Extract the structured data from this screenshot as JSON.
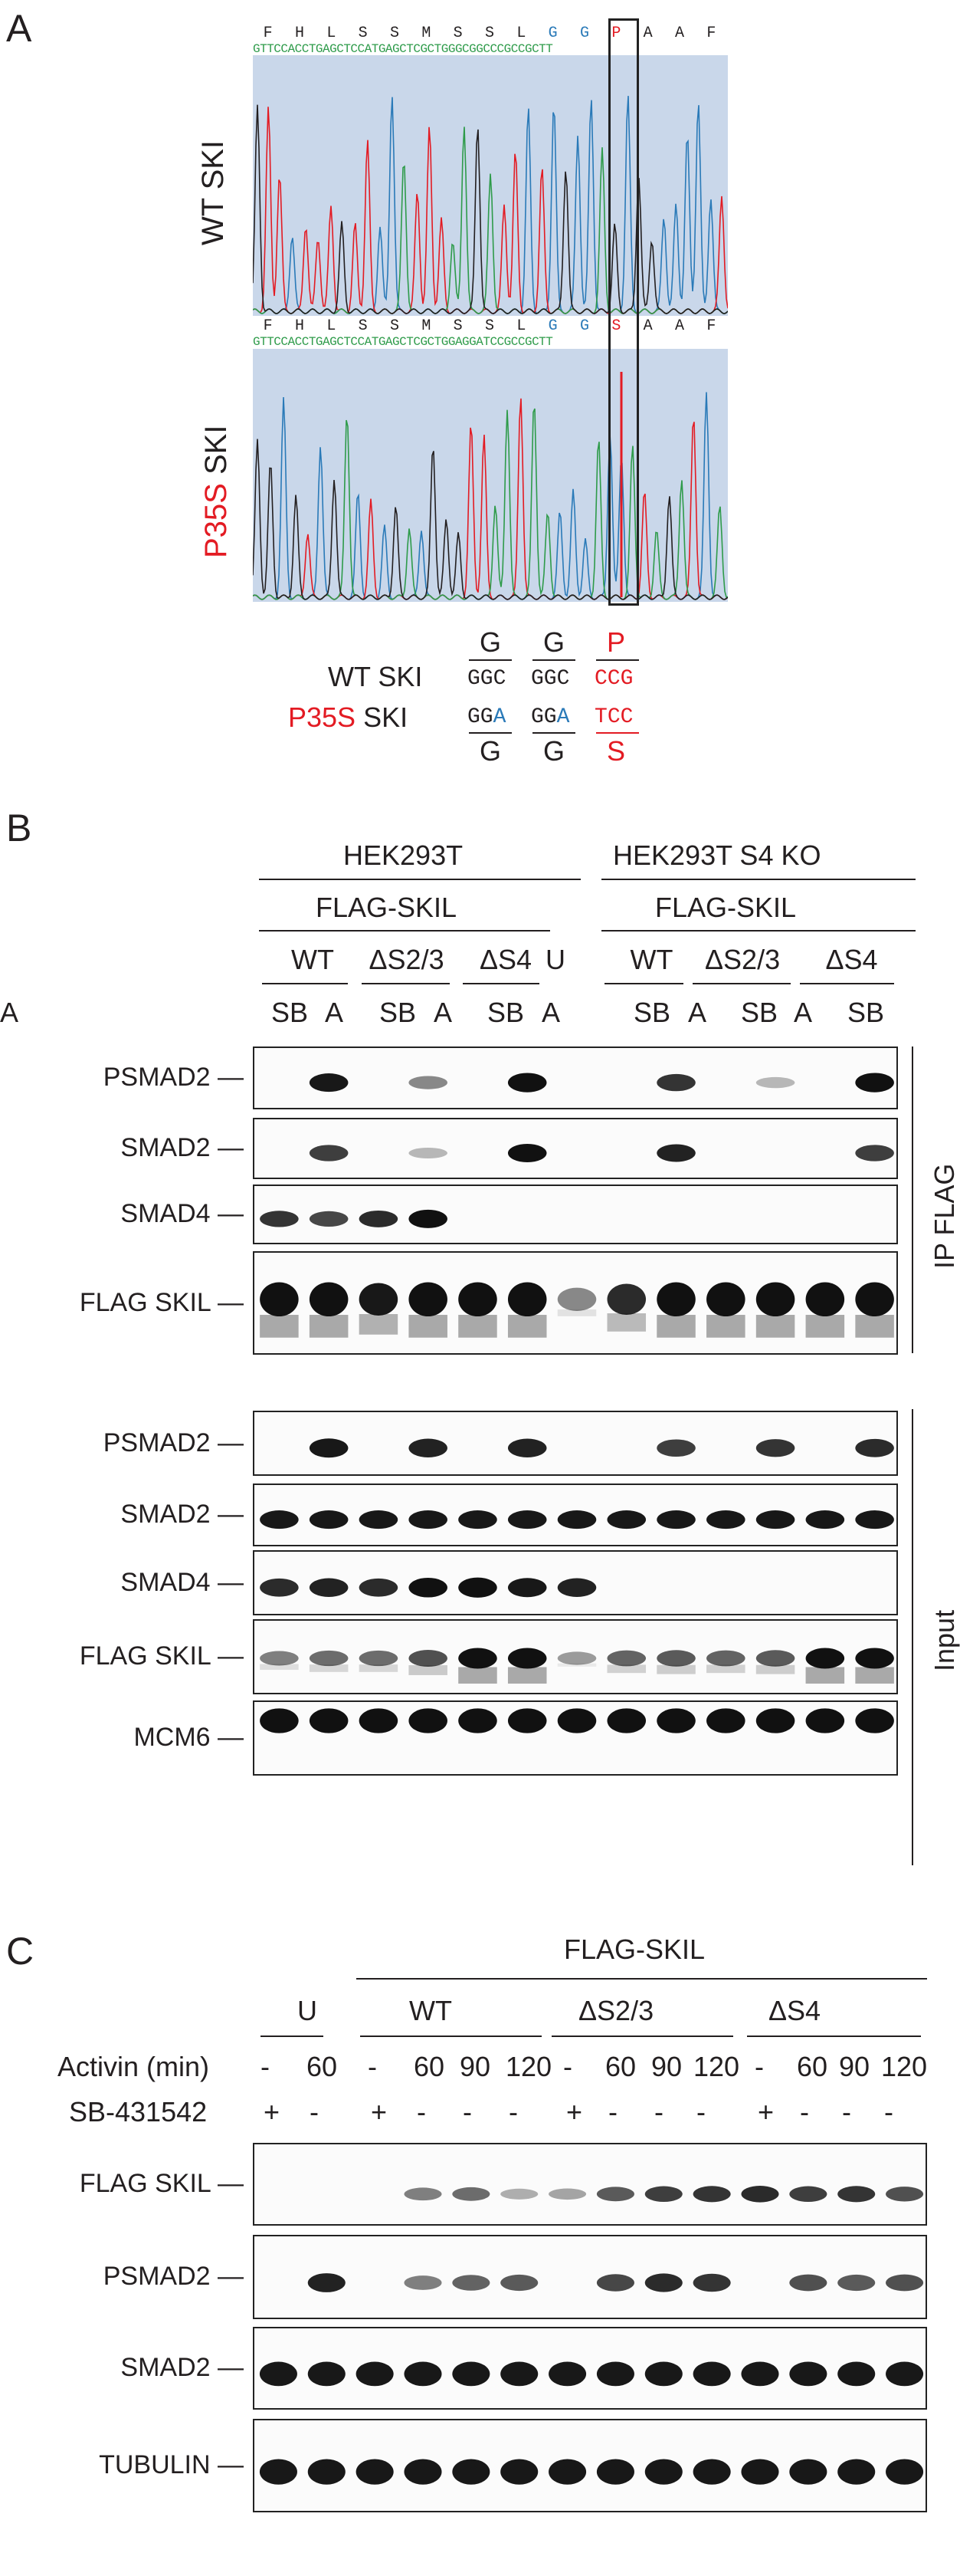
{
  "panelA": {
    "letter": "A",
    "aa_sequence": [
      "F",
      "H",
      "L",
      "S",
      "S",
      "M",
      "S",
      "S",
      "L",
      "G",
      "G",
      "P",
      "A",
      "A",
      "F"
    ],
    "aa_sequence_mut": [
      "F",
      "H",
      "L",
      "S",
      "S",
      "M",
      "S",
      "S",
      "L",
      "G",
      "G",
      "S",
      "A",
      "A",
      "F"
    ],
    "dna_wt": "GTTCCACCTGAGCTCCATGAGCTCGCTGGGCGGCCCGCCGCTT",
    "dna_mut": "GTTCCACCTGAGCTCCATGAGCTCGCTGGAGGATCCGCCGCTT",
    "wt_label": "WT SKI",
    "mut_label_red": "P35S",
    "mut_label_black": " SKI",
    "codon_table": {
      "top_aa": [
        "G",
        "G",
        "P"
      ],
      "wt_codons": [
        "GGC",
        "GGC",
        "CCG"
      ],
      "mut_codons": [
        {
          "pre": "GG",
          "hi": "A",
          "post": ""
        },
        {
          "pre": "GG",
          "hi": "A",
          "post": ""
        },
        {
          "pre": "",
          "hi": "T",
          "post": "CC"
        }
      ],
      "bottom_aa": [
        "G",
        "G",
        "S"
      ],
      "wt_label": "WT SKI",
      "mut_label_red": "P35S",
      "mut_label_black": " SKI"
    },
    "colors": {
      "blue": "#2a7ab8",
      "red": "#e31b23",
      "green": "#2e9b4a",
      "black": "#231f20",
      "bg": "#c9d7ea"
    }
  },
  "panelB": {
    "letter": "B",
    "header_groups": [
      "HEK293T",
      "HEK293T S4 KO"
    ],
    "sub_groups": [
      "FLAG-SKIL",
      "FLAG-SKIL"
    ],
    "constructs": [
      "WT",
      "ΔS2/3",
      "ΔS4",
      "U",
      "WT",
      "ΔS2/3",
      "ΔS4"
    ],
    "lanes": [
      "SB",
      "A",
      "SB",
      "A",
      "SB",
      "A",
      "SB",
      "A",
      "SB",
      "A",
      "SB",
      "A"
    ],
    "ip_rows": [
      "PSMAD2",
      "SMAD2",
      "SMAD4",
      "FLAG SKIL"
    ],
    "input_rows": [
      "PSMAD2",
      "SMAD2",
      "SMAD4",
      "FLAG SKIL",
      "MCM6"
    ],
    "ip_label": "IP FLAG",
    "input_label": "Input"
  },
  "panelC": {
    "letter": "C",
    "header": "FLAG-SKIL",
    "groups": [
      "U",
      "WT",
      "ΔS2/3",
      "ΔS4"
    ],
    "activin_label": "Activin (min)",
    "activin_values": [
      "-",
      "60",
      "-",
      "60",
      "90",
      "120",
      "-",
      "60",
      "90",
      "120",
      "-",
      "60",
      "90",
      "120"
    ],
    "sb_label": "SB-431542",
    "sb_values": [
      "+",
      "-",
      "+",
      "-",
      "-",
      "-",
      "+",
      "-",
      "-",
      "-",
      "+",
      "-",
      "-",
      "-"
    ],
    "rows": [
      "FLAG SKIL",
      "PSMAD2",
      "SMAD2",
      "TUBULIN"
    ]
  }
}
